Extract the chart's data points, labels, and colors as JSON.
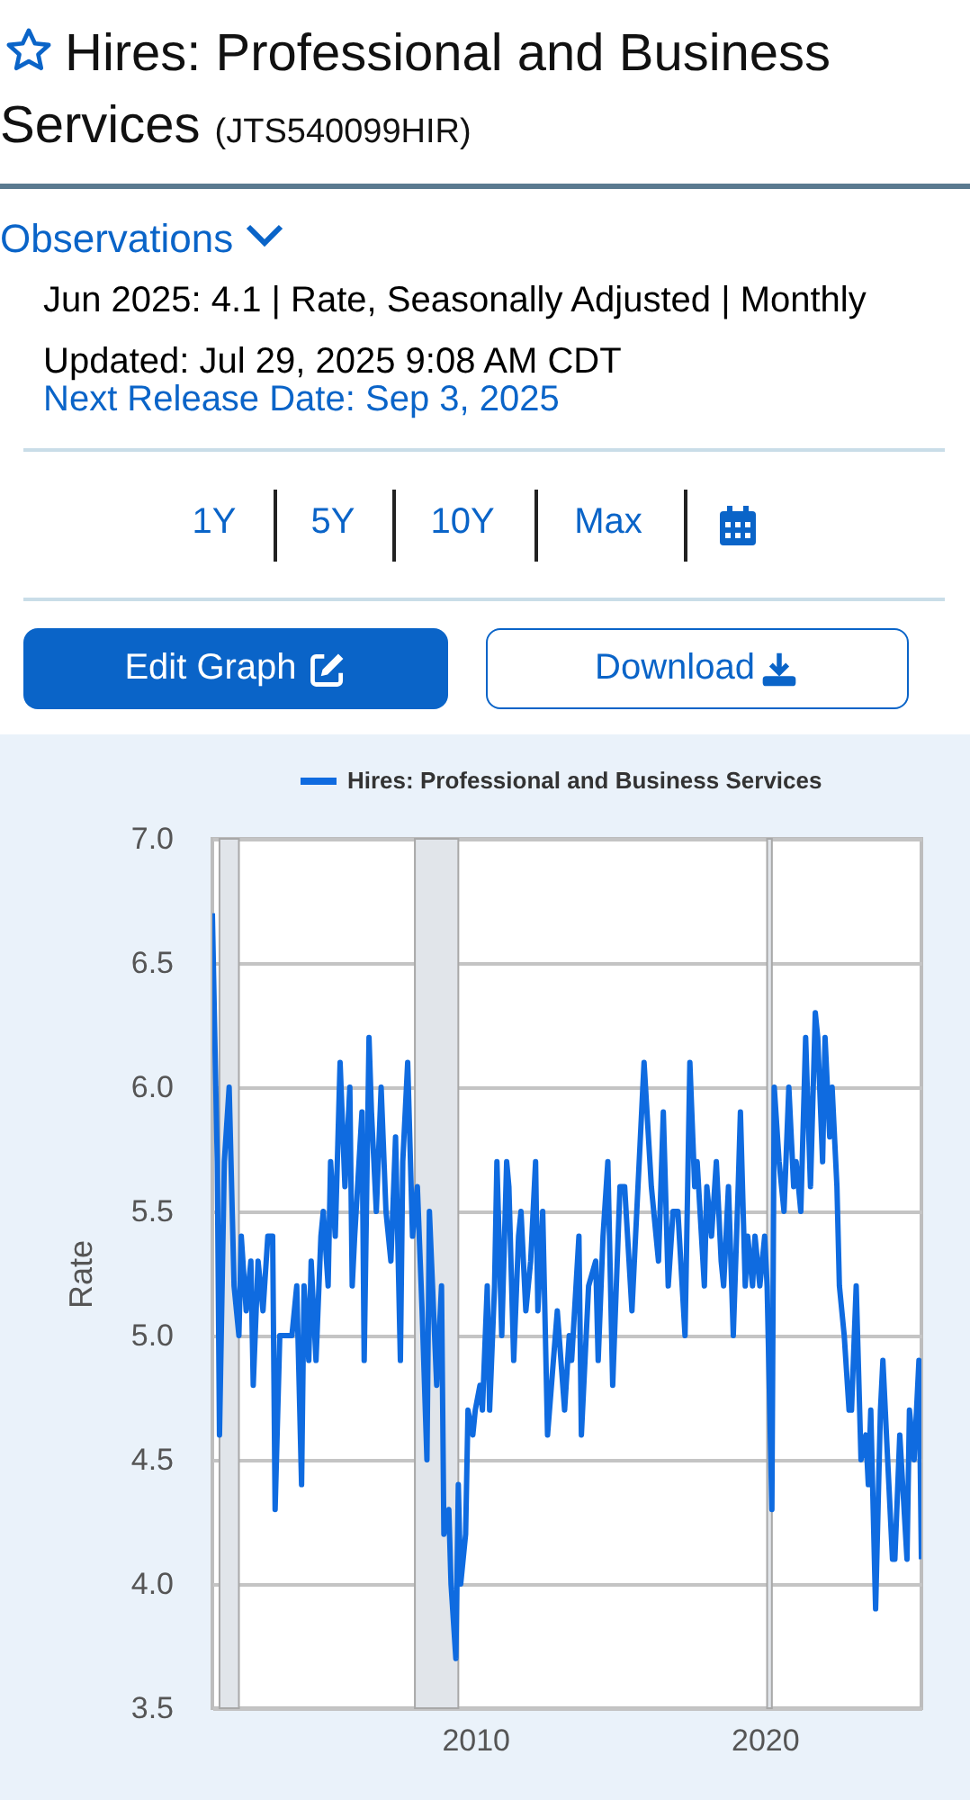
{
  "chart_data": {
    "type": "line",
    "title": "Hires: Professional and Business Services",
    "subtitle": "(JTS540099HIR)",
    "annotations": [
      "Observations",
      "Jun 2025: 4.1 | Rate, Seasonally Adjusted | Monthly",
      "Updated: Jul 29, 2025 9:08 AM CDT",
      "Next Release Date: Sep 3, 2025",
      "1Y",
      "5Y",
      "10Y",
      "Max",
      "Edit Graph",
      "Download"
    ],
    "ylabel": "Rate",
    "x": [
      "2000-12",
      "2001-02",
      "2001-03",
      "2001-05",
      "2001-07",
      "2001-09",
      "2001-11",
      "2001-12",
      "2002-02",
      "2002-04",
      "2002-05",
      "2002-07",
      "2002-09",
      "2002-11",
      "2003-01",
      "2003-02",
      "2003-04",
      "2003-06",
      "2003-09",
      "2003-11",
      "2004-01",
      "2004-02",
      "2004-04",
      "2004-05",
      "2004-07",
      "2004-09",
      "2004-10",
      "2004-12",
      "2005-01",
      "2005-03",
      "2005-05",
      "2005-07",
      "2005-09",
      "2005-10",
      "2005-11",
      "2006-02",
      "2006-03",
      "2006-05",
      "2006-06",
      "2006-08",
      "2006-10",
      "2006-12",
      "2007-02",
      "2007-04",
      "2007-06",
      "2007-07",
      "2007-09",
      "2007-11",
      "2008-01",
      "2008-03",
      "2008-05",
      "2008-06",
      "2008-09",
      "2008-11",
      "2008-12",
      "2009-02",
      "2009-03",
      "2009-05",
      "2009-06",
      "2009-07",
      "2009-09",
      "2009-10",
      "2009-12",
      "2010-01",
      "2010-03",
      "2010-04",
      "2010-06",
      "2010-07",
      "2010-09",
      "2010-10",
      "2010-12",
      "2011-02",
      "2011-03",
      "2011-05",
      "2011-07",
      "2011-08",
      "2011-10",
      "2011-12",
      "2012-02",
      "2012-03",
      "2012-05",
      "2012-07",
      "2012-11",
      "2013-02",
      "2013-04",
      "2013-05",
      "2013-08",
      "2013-09",
      "2013-12",
      "2014-03",
      "2014-04",
      "2014-06",
      "2014-08",
      "2014-10",
      "2015-01",
      "2015-03",
      "2015-06",
      "2015-08",
      "2015-11",
      "2016-02",
      "2016-05",
      "2016-07",
      "2016-09",
      "2016-11",
      "2017-01",
      "2017-04",
      "2017-06",
      "2017-08",
      "2017-09",
      "2017-12",
      "2018-01",
      "2018-03",
      "2018-05",
      "2018-07",
      "2018-08",
      "2018-10",
      "2018-12",
      "2019-02",
      "2019-03",
      "2019-05",
      "2019-06",
      "2019-08",
      "2019-09",
      "2019-11",
      "2020-01",
      "2020-02",
      "2020-04",
      "2020-05",
      "2020-07",
      "2020-09",
      "2020-11",
      "2021-01",
      "2021-02",
      "2021-04",
      "2021-06",
      "2021-08",
      "2021-10",
      "2021-11",
      "2022-01",
      "2022-02",
      "2022-04",
      "2022-05",
      "2022-07",
      "2022-08",
      "2022-10",
      "2022-12",
      "2023-01",
      "2023-03",
      "2023-05",
      "2023-07",
      "2023-08",
      "2023-09",
      "2023-11",
      "2024-01",
      "2024-02",
      "2024-04",
      "2024-06",
      "2024-07",
      "2024-09",
      "2024-12",
      "2025-01",
      "2025-03",
      "2025-05",
      "2025-06"
    ],
    "series": [
      {
        "name": "Hires: Professional and Business Services",
        "color": "#0f6be0",
        "values": [
          6.7,
          5.7,
          4.6,
          5.7,
          6.0,
          5.2,
          5.0,
          5.4,
          5.1,
          5.3,
          4.8,
          5.3,
          5.1,
          5.4,
          5.4,
          4.3,
          5.0,
          5.0,
          5.0,
          5.2,
          4.4,
          5.2,
          4.9,
          5.3,
          4.9,
          5.4,
          5.5,
          5.2,
          5.7,
          5.4,
          6.1,
          5.6,
          6.0,
          5.2,
          5.4,
          5.9,
          4.9,
          6.2,
          5.9,
          5.5,
          6.0,
          5.5,
          5.3,
          5.8,
          4.9,
          5.7,
          6.1,
          5.4,
          5.6,
          5.1,
          4.5,
          5.5,
          4.8,
          5.2,
          4.2,
          4.3,
          4.0,
          3.7,
          4.4,
          4.0,
          4.2,
          4.7,
          4.6,
          4.7,
          4.8,
          4.7,
          5.2,
          4.7,
          5.2,
          5.7,
          5.0,
          5.7,
          5.6,
          4.9,
          5.4,
          5.5,
          5.1,
          5.3,
          5.7,
          5.1,
          5.5,
          4.6,
          5.1,
          4.7,
          5.0,
          4.9,
          5.4,
          4.6,
          5.2,
          5.3,
          4.9,
          5.4,
          5.7,
          4.8,
          5.6,
          5.6,
          5.1,
          5.5,
          6.1,
          5.6,
          5.3,
          5.9,
          5.2,
          5.5,
          5.5,
          5.0,
          6.1,
          5.6,
          5.7,
          5.2,
          5.6,
          5.4,
          5.7,
          5.3,
          5.2,
          5.6,
          5.0,
          5.6,
          5.9,
          5.2,
          5.4,
          5.2,
          5.4,
          5.2,
          5.4,
          5.2,
          4.3,
          6.0,
          5.7,
          5.5,
          6.0,
          5.6,
          5.7,
          5.5,
          6.2,
          5.6,
          6.3,
          6.2,
          5.7,
          6.2,
          5.8,
          6.0,
          5.6,
          5.2,
          5.0,
          4.7,
          4.7,
          5.2,
          4.5,
          4.6,
          4.4,
          4.7,
          3.9,
          4.7,
          4.9,
          4.5,
          4.1,
          4.1,
          4.6,
          4.1,
          4.7,
          4.5,
          4.9,
          4.1
        ]
      }
    ],
    "xlim": [
      "2000-12",
      "2025-06"
    ],
    "xticks": [
      "2010",
      "2020"
    ],
    "ylim": [
      3.5,
      7.0
    ],
    "yticks": [
      3.5,
      {
        "value": 4,
        "label": "4.0"
      },
      4.5,
      {
        "value": 5,
        "label": "5.0"
      },
      5.5,
      {
        "value": 6,
        "label": "6.0"
      },
      6.5,
      {
        "value": 7,
        "label": "7.0"
      }
    ],
    "bands": [
      {
        "axis": "x",
        "from": "2001-03",
        "to": "2001-11",
        "color": "#e1e5ea"
      },
      {
        "axis": "x",
        "from": "2007-12",
        "to": "2009-06",
        "color": "#e1e5ea"
      },
      {
        "axis": "x",
        "from": "2020-02",
        "to": "2020-04",
        "color": "#e1e5ea"
      }
    ],
    "grid": "y",
    "legend": "top left",
    "line_style": "solid"
  }
}
